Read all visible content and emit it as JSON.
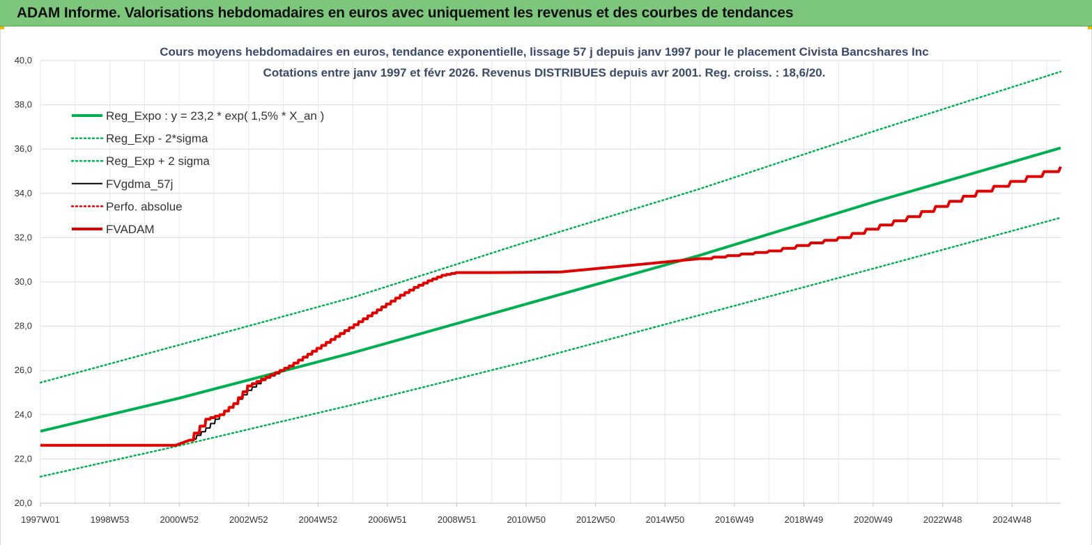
{
  "banner": {
    "title": "ADAM Informe. Valorisations hebdomadaires en euros avec uniquement les revenus et des courbes de tendances"
  },
  "chart_data": {
    "type": "line",
    "title_lines": [
      "Cours moyens hebdomadaires en euros, tendance exponentielle, lissage 57 j depuis janv 1997 pour le placement Civista Bancshares Inc",
      "Cotations entre janv 1997 et févr 2026. Revenus DISTRIBUES depuis avr 2001. Reg. croiss. : 18,6/20."
    ],
    "xlabel": "",
    "ylabel": "",
    "x_range": [
      1997.0,
      2026.4
    ],
    "ylim": [
      20,
      40
    ],
    "y_ticks": [
      "20,0",
      "22,0",
      "24,0",
      "26,0",
      "28,0",
      "30,0",
      "32,0",
      "34,0",
      "36,0",
      "38,0",
      "40,0"
    ],
    "x_tick_labels": [
      "1997W01",
      "1998W53",
      "2000W52",
      "2002W52",
      "2004W52",
      "2006W51",
      "2008W51",
      "2010W50",
      "2012W50",
      "2014W50",
      "2016W49",
      "2018W49",
      "2020W49",
      "2022W48",
      "2024W48"
    ],
    "x_tick_years": [
      1997.0,
      2001.0,
      2003.0,
      2005.0,
      2007.0,
      2009.0,
      2011.0,
      2013.0,
      2015.0,
      2017.0,
      2019.0,
      2021.0,
      2023.0,
      2025.0
    ],
    "grid": true,
    "legend_position": "top-left",
    "series": [
      {
        "name": "Reg_Expo : y = 23,2 * exp( 1,5% *  X_an )",
        "color": "#00b050",
        "style": "solid-thick",
        "points": [
          [
            1997.0,
            23.25
          ],
          [
            2001.0,
            24.75
          ],
          [
            2006.0,
            26.8
          ],
          [
            2011.0,
            29.0
          ],
          [
            2016.0,
            31.2
          ],
          [
            2021.0,
            33.6
          ],
          [
            2026.4,
            36.05
          ]
        ]
      },
      {
        "name": "Reg_Exp - 2*sigma",
        "color": "#00b050",
        "style": "dotted",
        "points": [
          [
            1997.0,
            21.2
          ],
          [
            2001.0,
            22.6
          ],
          [
            2006.0,
            24.45
          ],
          [
            2011.0,
            26.4
          ],
          [
            2016.0,
            28.5
          ],
          [
            2021.0,
            30.6
          ],
          [
            2026.4,
            32.9
          ]
        ]
      },
      {
        "name": "Reg_Exp + 2 sigma",
        "color": "#00b050",
        "style": "dotted",
        "points": [
          [
            1997.0,
            25.45
          ],
          [
            2001.0,
            27.15
          ],
          [
            2006.0,
            29.3
          ],
          [
            2011.0,
            31.8
          ],
          [
            2016.0,
            34.2
          ],
          [
            2021.0,
            36.8
          ],
          [
            2026.4,
            39.5
          ]
        ]
      },
      {
        "name": "FVgdma_57j",
        "color": "#000000",
        "style": "solid",
        "points": [
          [
            1997.0,
            22.62
          ],
          [
            2000.9,
            22.62
          ],
          [
            2001.4,
            22.9
          ],
          [
            2001.8,
            23.4
          ],
          [
            2002.2,
            24.0
          ],
          [
            2002.6,
            24.5
          ],
          [
            2003.0,
            25.1
          ],
          [
            2003.4,
            25.55
          ],
          [
            2003.8,
            25.85
          ],
          [
            2004.2,
            26.2
          ],
          [
            2004.6,
            26.6
          ],
          [
            2005.0,
            27.0
          ],
          [
            2005.4,
            27.4
          ],
          [
            2005.8,
            27.8
          ],
          [
            2006.2,
            28.2
          ],
          [
            2006.6,
            28.6
          ],
          [
            2007.0,
            29.0
          ],
          [
            2007.4,
            29.4
          ],
          [
            2007.8,
            29.75
          ],
          [
            2008.2,
            30.05
          ],
          [
            2008.6,
            30.3
          ],
          [
            2009.0,
            30.42
          ],
          [
            2010.0,
            30.42
          ],
          [
            2012.0,
            30.45
          ],
          [
            2014.0,
            30.75
          ],
          [
            2016.0,
            31.05
          ],
          [
            2018.0,
            31.4
          ],
          [
            2020.0,
            32.0
          ],
          [
            2022.0,
            32.95
          ],
          [
            2024.0,
            34.1
          ],
          [
            2026.4,
            35.2
          ]
        ]
      },
      {
        "name": "Perfo. absolue",
        "color": "#e00000",
        "style": "dotted",
        "points": []
      },
      {
        "name": "FVADAM",
        "color": "#e00000",
        "style": "solid-thick",
        "points": [
          [
            1997.0,
            22.62
          ],
          [
            2000.9,
            22.62
          ],
          [
            2001.3,
            22.85
          ],
          [
            2001.8,
            23.8
          ],
          [
            2002.2,
            24.0
          ],
          [
            2002.6,
            24.5
          ],
          [
            2003.0,
            25.3
          ],
          [
            2003.4,
            25.6
          ],
          [
            2003.8,
            25.9
          ],
          [
            2004.2,
            26.2
          ],
          [
            2004.6,
            26.6
          ],
          [
            2005.0,
            27.0
          ],
          [
            2005.4,
            27.4
          ],
          [
            2005.8,
            27.8
          ],
          [
            2006.2,
            28.2
          ],
          [
            2006.6,
            28.6
          ],
          [
            2007.0,
            29.0
          ],
          [
            2007.4,
            29.4
          ],
          [
            2007.8,
            29.75
          ],
          [
            2008.2,
            30.05
          ],
          [
            2008.6,
            30.3
          ],
          [
            2009.0,
            30.42
          ],
          [
            2010.0,
            30.42
          ],
          [
            2012.0,
            30.45
          ],
          [
            2014.0,
            30.75
          ],
          [
            2016.0,
            31.05
          ],
          [
            2018.0,
            31.4
          ],
          [
            2020.0,
            32.0
          ],
          [
            2022.0,
            32.95
          ],
          [
            2024.0,
            34.1
          ],
          [
            2026.4,
            35.2
          ]
        ]
      }
    ]
  }
}
